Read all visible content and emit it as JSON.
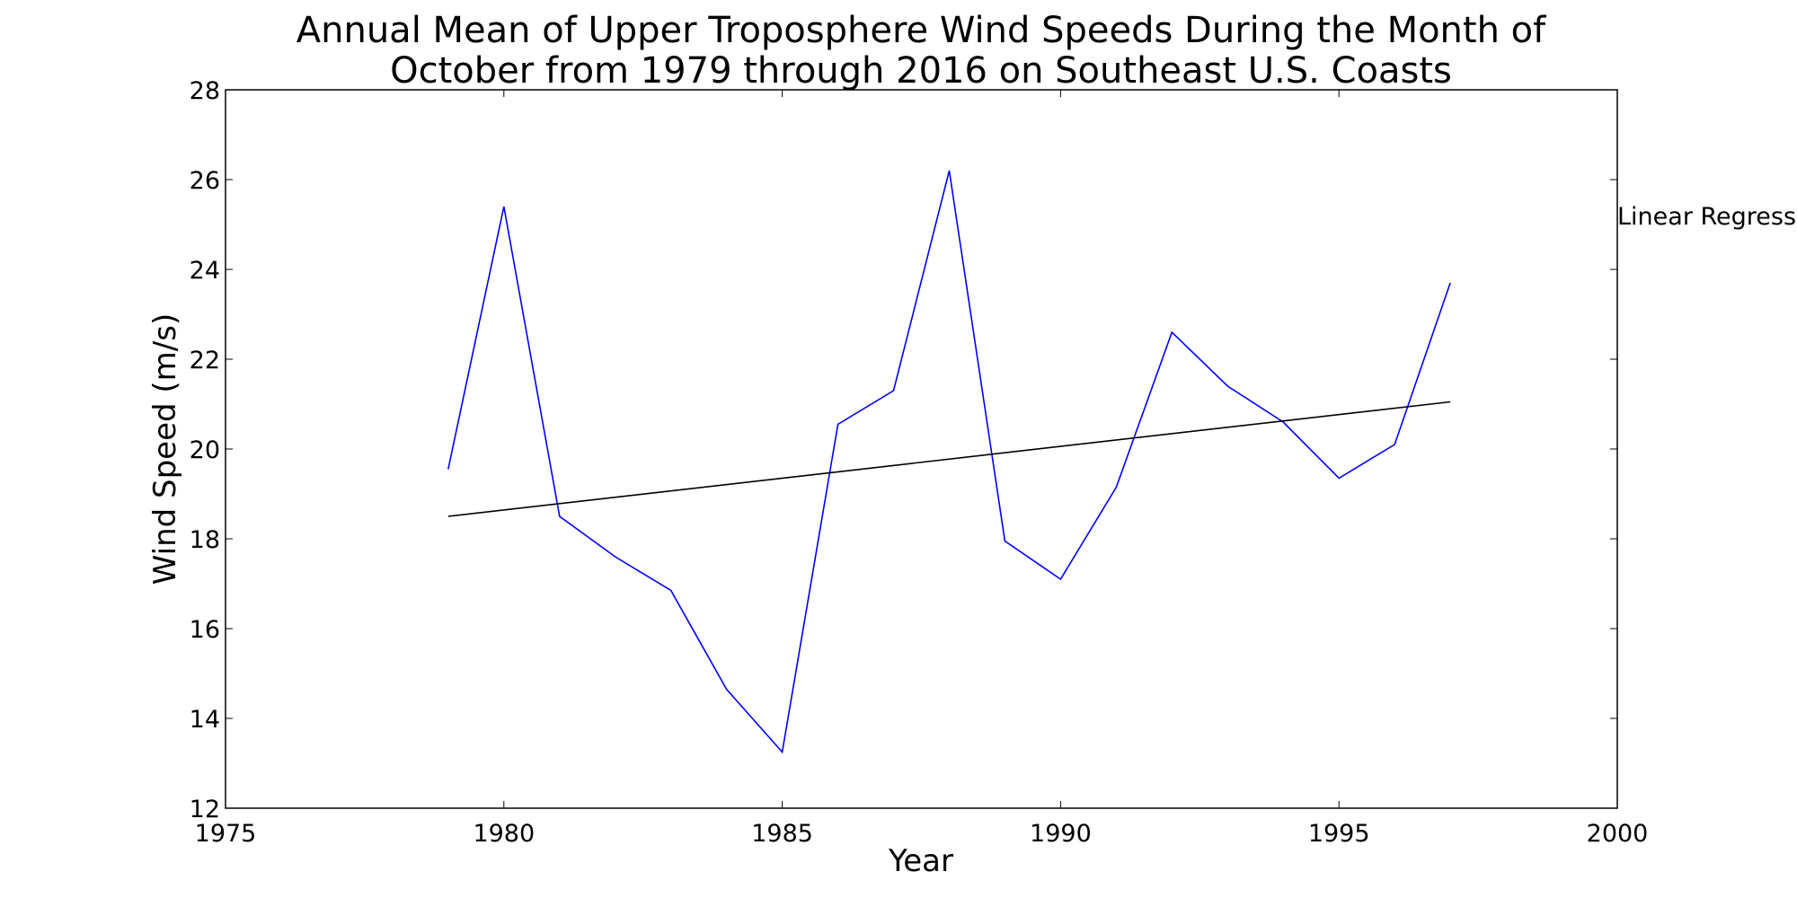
{
  "chart_data": {
    "type": "line",
    "title_lines": [
      "Annual Mean of Upper Troposphere Wind Speeds During the Month of",
      "October from 1979 through 2016 on Southeast U.S. Coasts"
    ],
    "xlabel": "Year",
    "ylabel": "Wind Speed (m/s)",
    "xlim": [
      1975,
      2000
    ],
    "ylim": [
      12,
      28
    ],
    "xticks": [
      "1975",
      "1980",
      "1985",
      "1990",
      "1995",
      "2000"
    ],
    "yticks": [
      "12",
      "14",
      "16",
      "18",
      "20",
      "22",
      "24",
      "26",
      "28"
    ],
    "grid": false,
    "annotation": "Linear Regression",
    "series": [
      {
        "color": "#0000ff",
        "x": [
          1979,
          1980,
          1981,
          1982,
          1983,
          1984,
          1985,
          1986,
          1987,
          1988,
          1989,
          1990,
          1991,
          1992,
          1993,
          1994,
          1995,
          1996,
          1997
        ],
        "y": [
          19.55,
          25.4,
          18.5,
          17.6,
          16.85,
          14.65,
          13.25,
          20.55,
          21.3,
          26.2,
          17.95,
          17.1,
          19.15,
          22.6,
          21.4,
          20.6,
          19.35,
          20.1,
          23.7
        ]
      },
      {
        "color": "#000000",
        "x": [
          1979,
          1997
        ],
        "y": [
          18.5,
          21.05
        ]
      }
    ]
  }
}
